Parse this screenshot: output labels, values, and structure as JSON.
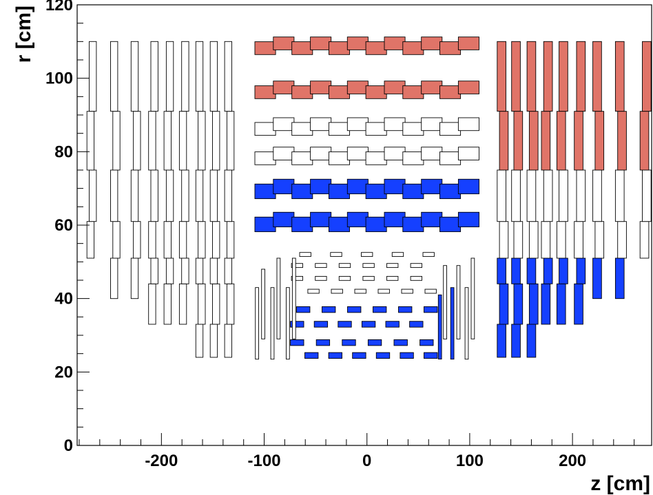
{
  "chart_data": {
    "type": "scatter",
    "title": "",
    "xlabel": "z [cm]",
    "ylabel": "r [cm]",
    "xlim": [
      -282,
      277
    ],
    "ylim": [
      0,
      120
    ],
    "x_ticks": [
      "-200",
      "-100",
      "0",
      "100",
      "200"
    ],
    "y_ticks": [
      "0",
      "20",
      "40",
      "60",
      "80",
      "100",
      "120"
    ],
    "grid": false,
    "colors": {
      "red": "#e07468",
      "blue": "#1540ff",
      "white": "#ffffff",
      "outline": "#000000"
    },
    "barrel_layers": [
      {
        "r": 109,
        "color": "red",
        "h": 3.5
      },
      {
        "r": 97,
        "color": "red",
        "h": 3.5
      },
      {
        "r": 87,
        "color": "white",
        "h": 3.5
      },
      {
        "r": 79,
        "color": "white",
        "h": 3.5
      },
      {
        "r": 70,
        "color": "blue",
        "h": 4
      },
      {
        "r": 61,
        "color": "blue",
        "h": 4
      }
    ],
    "inner_barrel_layers": [
      {
        "r": 52,
        "color": "white",
        "z_from": -60,
        "z_to": 60,
        "n": 5
      },
      {
        "r": 49,
        "color": "white",
        "z_from": -68,
        "z_to": 48,
        "n": 6
      },
      {
        "r": 45.5,
        "color": "white",
        "z_from": -68,
        "z_to": 48,
        "n": 6
      },
      {
        "r": 42,
        "color": "white",
        "z_from": -52,
        "z_to": 62,
        "n": 6
      },
      {
        "r": 37,
        "color": "blue",
        "z_from": -62,
        "z_to": 62,
        "n": 6
      },
      {
        "r": 33,
        "color": "blue",
        "z_from": -68,
        "z_to": 48,
        "n": 6
      },
      {
        "r": 28,
        "color": "blue",
        "z_from": -68,
        "z_to": 58,
        "n": 6
      },
      {
        "r": 24.5,
        "color": "blue",
        "z_from": -54,
        "z_to": 62,
        "n": 6
      }
    ],
    "endcap_left": [
      {
        "z": -269,
        "rings": [
          [
            51,
            61
          ],
          [
            61,
            75
          ],
          [
            75,
            91
          ],
          [
            91,
            110
          ]
        ]
      },
      {
        "z": -246,
        "rings": [
          [
            40,
            51
          ],
          [
            51,
            61
          ],
          [
            61,
            75
          ],
          [
            75,
            91
          ],
          [
            91,
            110
          ]
        ]
      },
      {
        "z": -226,
        "rings": [
          [
            40,
            51
          ],
          [
            51,
            61
          ],
          [
            61,
            75
          ],
          [
            75,
            91
          ],
          [
            91,
            110
          ]
        ]
      },
      {
        "z": -209,
        "rings": [
          [
            33,
            44
          ],
          [
            44,
            51
          ],
          [
            51,
            61
          ],
          [
            61,
            75
          ],
          [
            75,
            91
          ],
          [
            91,
            110
          ]
        ]
      },
      {
        "z": -194,
        "rings": [
          [
            33,
            44
          ],
          [
            44,
            51
          ],
          [
            51,
            61
          ],
          [
            61,
            75
          ],
          [
            75,
            91
          ],
          [
            91,
            110
          ]
        ]
      },
      {
        "z": -179,
        "rings": [
          [
            33,
            44
          ],
          [
            44,
            51
          ],
          [
            51,
            61
          ],
          [
            61,
            75
          ],
          [
            75,
            91
          ],
          [
            91,
            110
          ]
        ]
      },
      {
        "z": -163,
        "rings": [
          [
            24,
            33
          ],
          [
            33,
            44
          ],
          [
            44,
            51
          ],
          [
            51,
            61
          ],
          [
            61,
            75
          ],
          [
            75,
            91
          ],
          [
            91,
            110
          ]
        ]
      },
      {
        "z": -149,
        "rings": [
          [
            24,
            33
          ],
          [
            33,
            44
          ],
          [
            44,
            51
          ],
          [
            51,
            61
          ],
          [
            61,
            75
          ],
          [
            75,
            91
          ],
          [
            91,
            110
          ]
        ]
      },
      {
        "z": -135,
        "rings": [
          [
            24,
            33
          ],
          [
            33,
            44
          ],
          [
            44,
            51
          ],
          [
            51,
            61
          ],
          [
            61,
            75
          ],
          [
            75,
            91
          ],
          [
            91,
            110
          ]
        ]
      }
    ],
    "endcap_right": [
      {
        "z": 131,
        "rings": [
          [
            24,
            33,
            "blue"
          ],
          [
            33,
            44,
            "blue"
          ],
          [
            44,
            51,
            "blue"
          ],
          [
            51,
            61,
            "white"
          ],
          [
            61,
            75,
            "white"
          ],
          [
            75,
            91,
            "red"
          ],
          [
            91,
            110,
            "red"
          ]
        ]
      },
      {
        "z": 145,
        "rings": [
          [
            24,
            33,
            "blue"
          ],
          [
            33,
            44,
            "blue"
          ],
          [
            44,
            51,
            "blue"
          ],
          [
            51,
            61,
            "white"
          ],
          [
            61,
            75,
            "white"
          ],
          [
            75,
            91,
            "red"
          ],
          [
            91,
            110,
            "red"
          ]
        ]
      },
      {
        "z": 160,
        "rings": [
          [
            24,
            33,
            "blue"
          ],
          [
            33,
            44,
            "blue"
          ],
          [
            44,
            51,
            "blue"
          ],
          [
            51,
            61,
            "white"
          ],
          [
            61,
            75,
            "white"
          ],
          [
            75,
            91,
            "red"
          ],
          [
            91,
            110,
            "red"
          ]
        ]
      },
      {
        "z": 174,
        "rings": [
          [
            33,
            44,
            "blue"
          ],
          [
            44,
            51,
            "blue"
          ],
          [
            51,
            61,
            "white"
          ],
          [
            61,
            75,
            "white"
          ],
          [
            75,
            91,
            "red"
          ],
          [
            91,
            110,
            "red"
          ]
        ]
      },
      {
        "z": 189,
        "rings": [
          [
            33,
            44,
            "blue"
          ],
          [
            44,
            51,
            "blue"
          ],
          [
            51,
            61,
            "white"
          ],
          [
            61,
            75,
            "white"
          ],
          [
            75,
            91,
            "red"
          ],
          [
            91,
            110,
            "red"
          ]
        ]
      },
      {
        "z": 206,
        "rings": [
          [
            33,
            44,
            "blue"
          ],
          [
            44,
            51,
            "blue"
          ],
          [
            51,
            61,
            "white"
          ],
          [
            61,
            75,
            "white"
          ],
          [
            75,
            91,
            "red"
          ],
          [
            91,
            110,
            "red"
          ]
        ]
      },
      {
        "z": 224,
        "rings": [
          [
            40,
            51,
            "blue"
          ],
          [
            51,
            61,
            "white"
          ],
          [
            61,
            75,
            "white"
          ],
          [
            75,
            91,
            "red"
          ],
          [
            91,
            110,
            "red"
          ]
        ]
      },
      {
        "z": 246,
        "rings": [
          [
            40,
            51,
            "blue"
          ],
          [
            51,
            61,
            "white"
          ],
          [
            61,
            75,
            "white"
          ],
          [
            75,
            91,
            "red"
          ],
          [
            91,
            110,
            "red"
          ]
        ]
      },
      {
        "z": 270,
        "rings": [
          [
            51,
            61,
            "white"
          ],
          [
            61,
            75,
            "white"
          ],
          [
            75,
            91,
            "red"
          ],
          [
            91,
            110,
            "red"
          ]
        ]
      }
    ],
    "inner_disks": [
      {
        "z": -107,
        "r_from": 23.5,
        "r_to": 43,
        "color": "white"
      },
      {
        "z": -101,
        "r_from": 29,
        "r_to": 48,
        "color": "white"
      },
      {
        "z": -92,
        "r_from": 23.5,
        "r_to": 43,
        "color": "white"
      },
      {
        "z": -86,
        "r_from": 29,
        "r_to": 51,
        "color": "white"
      },
      {
        "z": -77,
        "r_from": 23.5,
        "r_to": 43,
        "color": "white"
      },
      {
        "z": -71,
        "r_from": 29,
        "r_to": 51,
        "color": "white"
      },
      {
        "z": 71,
        "r_from": 23.5,
        "r_to": 41,
        "color": "blue"
      },
      {
        "z": 76,
        "r_from": 29,
        "r_to": 49,
        "color": "white"
      },
      {
        "z": 83,
        "r_from": 23.5,
        "r_to": 43,
        "color": "blue"
      },
      {
        "z": 89,
        "r_from": 29,
        "r_to": 49,
        "color": "white"
      },
      {
        "z": 97,
        "r_from": 23.5,
        "r_to": 43,
        "color": "white"
      },
      {
        "z": 103,
        "r_from": 29,
        "r_to": 51,
        "color": "white"
      }
    ]
  }
}
